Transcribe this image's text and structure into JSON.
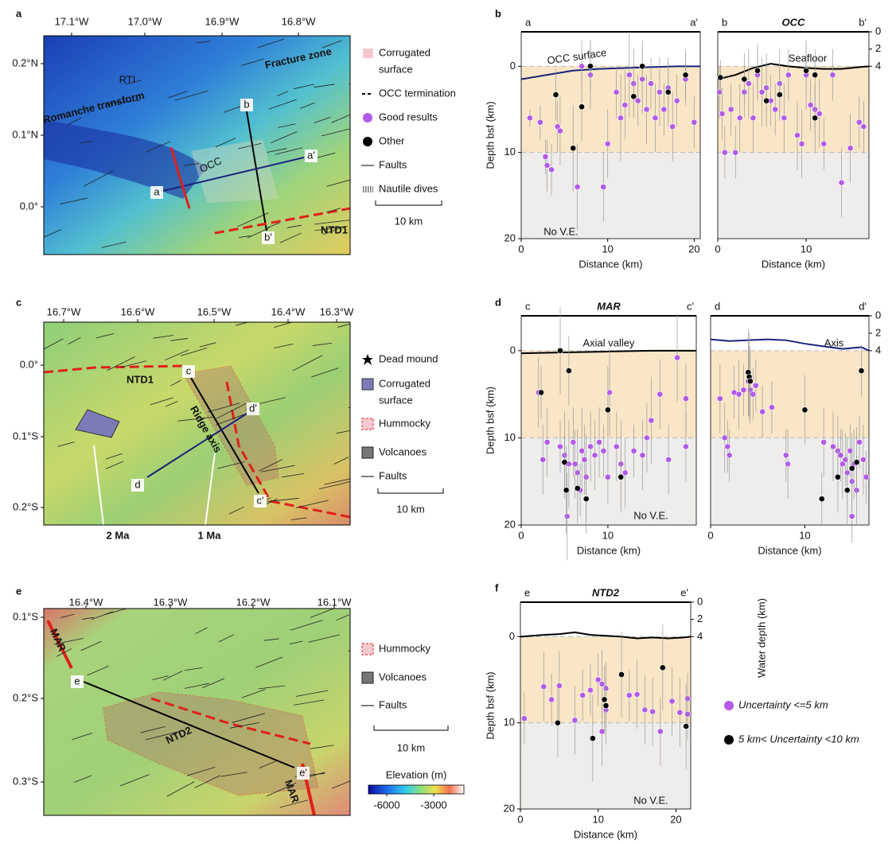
{
  "panel_labels": [
    "a",
    "b",
    "c",
    "d",
    "e",
    "f"
  ],
  "maps": [
    {
      "lon_labels": [
        "17.1°W",
        "17.0°W",
        "16.9°W",
        "16.8°W"
      ],
      "lat_labels": [
        "0.2°N",
        "0.1°N",
        "0.0°"
      ],
      "annotations": [
        "RTI",
        "Romanche transform",
        "Fracture zone",
        "OCC",
        "a",
        "a'",
        "b",
        "b'",
        "NTD1"
      ],
      "legend": [
        [
          "Corrugated",
          "surface"
        ],
        [
          "OCC termination"
        ],
        [
          "Good results"
        ],
        [
          "Other"
        ],
        [
          "Faults"
        ],
        [
          "Nautile dives"
        ]
      ],
      "scale_bar": "10 km"
    },
    {
      "lon_labels": [
        "16.7°W",
        "16.6°W",
        "16.5°W",
        "16.4°W",
        "16.3°W"
      ],
      "lat_labels": [
        "0.0°",
        "0.1°S",
        "0.2°S"
      ],
      "annotations": [
        "NTD1",
        "c",
        "Ridge axis",
        "d'",
        "d",
        "c'",
        "2 Ma",
        "1 Ma"
      ],
      "legend": [
        [
          "Dead mound"
        ],
        [
          "Corrugated",
          "surface"
        ],
        [
          "Hummocky"
        ],
        [
          "Volcanoes"
        ],
        [
          "Faults"
        ]
      ],
      "scale_bar": "10 km"
    },
    {
      "lon_labels": [
        "16.4°W",
        "16.3°W",
        "16.2°W",
        "16.1°W"
      ],
      "lat_labels": [
        "0.1°S",
        "0.2°S",
        "0.3°S"
      ],
      "annotations": [
        "MAR",
        "e",
        "NTD2",
        "e'",
        "MAR"
      ],
      "legend": [
        [
          "Hummocky"
        ],
        [
          "Volcanoes"
        ],
        [
          "Faults"
        ]
      ],
      "scale_bar": "10 km",
      "colorbar": {
        "title": "Elevation (m)",
        "lim": [
          -7170,
          -1070
        ],
        "ticks": [
          -6000,
          -3000
        ]
      }
    }
  ],
  "chart_data": [
    {
      "type": "scatter",
      "end_labels": [
        "a",
        "a'"
      ],
      "annotations": [
        "No V.E."
      ],
      "xlabel": "Distance (km)",
      "ylabel": "Depth bsf (km)",
      "xlim": [
        0,
        20.7
      ],
      "ylim": [
        20,
        -4
      ],
      "xticks": [
        0,
        10,
        20
      ],
      "yticks": [
        0,
        10,
        20
      ],
      "bands": [
        {
          "from": 0,
          "to": 10,
          "color": "#f9e6c6"
        },
        {
          "from": 10,
          "to": 20,
          "color": "#efedeb"
        }
      ],
      "series": [
        {
          "type": "line",
          "name": "OCC surface",
          "color": "#1a237e",
          "x": [
            0,
            3,
            6,
            9,
            12,
            15,
            18,
            20.7
          ],
          "values": [
            1.5,
            1,
            0.5,
            0.3,
            0.2,
            0.1,
            0,
            0
          ]
        },
        {
          "color": "#b35ae8",
          "x": [
            1,
            2.2,
            2.8,
            3,
            3.5,
            4.2,
            4.5,
            6.5,
            7,
            8,
            9.5,
            10,
            11,
            11.5,
            12,
            12.5,
            13,
            13.5,
            14,
            14.5,
            15,
            15.5,
            16,
            16.5,
            17,
            17.5,
            18,
            19,
            20
          ],
          "values": [
            6,
            6.5,
            10.5,
            11.5,
            12,
            7,
            7.5,
            14,
            0,
            1,
            14,
            9,
            3,
            6,
            4.5,
            1,
            2,
            4,
            1.5,
            5,
            2,
            6,
            3,
            5,
            2.5,
            7,
            4,
            1.5,
            6.5
          ],
          "errors": [
            1,
            2,
            2,
            3,
            3,
            3,
            4,
            5,
            3,
            4,
            4,
            4,
            3,
            5,
            4,
            5,
            4,
            3,
            4,
            4,
            3,
            4,
            4,
            3,
            3,
            4,
            3,
            3,
            3
          ]
        },
        {
          "color": "#000000",
          "x": [
            4,
            6,
            7,
            8,
            13,
            14,
            17,
            19
          ],
          "values": [
            3.3,
            9.5,
            4.7,
            0,
            3.5,
            0,
            3,
            1
          ],
          "errors": [
            3,
            5,
            4,
            3,
            2,
            3,
            4,
            3
          ]
        }
      ]
    },
    {
      "type": "scatter",
      "title": "OCC",
      "end_labels": [
        "b",
        "b'"
      ],
      "xlabel": "Distance (km)",
      "xlim": [
        0,
        17.1
      ],
      "ylim": [
        20,
        -4
      ],
      "xticks": [
        0,
        10
      ],
      "y2lim": [
        24,
        0
      ],
      "y2ticks": [
        0,
        2,
        4
      ],
      "bands": [
        {
          "from": 0,
          "to": 10,
          "color": "#f9e6c6"
        },
        {
          "from": 10,
          "to": 20,
          "color": "#efedeb"
        }
      ],
      "series": [
        {
          "type": "line",
          "name": "Seafloor",
          "color": "#000000",
          "x": [
            0,
            2,
            4,
            6,
            8,
            10,
            12,
            14,
            16,
            17.1
          ],
          "values": [
            1.5,
            1,
            0.2,
            -0.3,
            0,
            0.2,
            0.3,
            0.3,
            0.1,
            0
          ]
        },
        {
          "color": "#b35ae8",
          "x": [
            0.2,
            0.5,
            0.8,
            1.5,
            2,
            2.5,
            3,
            3.5,
            4,
            4.5,
            5,
            5.5,
            6,
            6.5,
            7,
            7.5,
            8,
            9,
            9.5,
            10,
            10.5,
            11,
            11.5,
            12,
            13,
            14,
            15,
            16,
            16.5
          ],
          "values": [
            3,
            5.5,
            10,
            5,
            10,
            6,
            3,
            2,
            6,
            1,
            3,
            2.5,
            4,
            5,
            2,
            6,
            1,
            8,
            9,
            1,
            4.5,
            5,
            5.5,
            9,
            1,
            13.5,
            9.5,
            6.5,
            7
          ],
          "errors": [
            3,
            3,
            3,
            3,
            3,
            4,
            3,
            4,
            4,
            3,
            4,
            4,
            3,
            3,
            4,
            4,
            3,
            4,
            4,
            4,
            3,
            3,
            4,
            3,
            3,
            4,
            4,
            3,
            3
          ]
        },
        {
          "color": "#000000",
          "x": [
            0.3,
            3,
            4.5,
            5.5,
            7,
            10,
            11,
            11
          ],
          "values": [
            1.3,
            1.5,
            0.5,
            4,
            3.3,
            0.5,
            1,
            6
          ],
          "errors": [
            2,
            3,
            3,
            3,
            3,
            3,
            3,
            4
          ]
        }
      ]
    },
    {
      "type": "scatter",
      "title": "MAR",
      "end_labels": [
        "c",
        "c'"
      ],
      "annotations": [
        "No V.E."
      ],
      "xlabel": "Distance (km)",
      "ylabel": "Depth bsf (km)",
      "xlim": [
        0,
        20.2
      ],
      "ylim": [
        20,
        -4
      ],
      "xticks": [
        0,
        10
      ],
      "yticks": [
        0,
        10,
        20
      ],
      "bands": [
        {
          "from": 0,
          "to": 10,
          "color": "#f9e6c6"
        },
        {
          "from": 10,
          "to": 20,
          "color": "#efedeb"
        }
      ],
      "series": [
        {
          "type": "line",
          "name": "Axial valley",
          "color": "#000000",
          "x": [
            0,
            5,
            10,
            15,
            20.2
          ],
          "values": [
            0.3,
            0.2,
            0.1,
            0,
            0
          ]
        },
        {
          "color": "#b35ae8",
          "x": [
            2,
            2.5,
            3,
            4.5,
            5,
            5.5,
            6,
            6.2,
            6.5,
            6.8,
            7,
            7.3,
            7.5,
            8,
            8.5,
            9,
            9.5,
            10,
            10.2,
            11,
            11.5,
            12,
            13,
            14,
            14.5,
            15,
            16,
            17,
            18,
            19,
            19,
            5.3
          ],
          "values": [
            4.8,
            12.5,
            10.5,
            11,
            12,
            13,
            10.5,
            13,
            14,
            16,
            11.5,
            12.5,
            14.5,
            11,
            12,
            10.5,
            11.5,
            14.5,
            4.8,
            11,
            13,
            14,
            11.5,
            12,
            10,
            8,
            5,
            12.5,
            0.8,
            5.5,
            11,
            19
          ],
          "errors": [
            4,
            4,
            4,
            3,
            5,
            5,
            4,
            4,
            5,
            3,
            5,
            4,
            5,
            4,
            4,
            4,
            3,
            3,
            5,
            4,
            5,
            4,
            3,
            4,
            4,
            5,
            4,
            4,
            5,
            4,
            4,
            5
          ]
        },
        {
          "color": "#000000",
          "x": [
            2.3,
            4.5,
            5,
            5.2,
            5.5,
            6.5,
            7.5,
            10,
            11.5
          ],
          "values": [
            4.8,
            0,
            12.8,
            16,
            2.3,
            15.8,
            17,
            6.8,
            14.5
          ],
          "errors": [
            3,
            5,
            3,
            5,
            4,
            4,
            4,
            5,
            4
          ]
        }
      ]
    },
    {
      "type": "scatter",
      "end_labels": [
        "d",
        "d'"
      ],
      "xlabel": "Distance (km)",
      "xlim": [
        0,
        16.8
      ],
      "ylim": [
        20,
        -4
      ],
      "xticks": [
        0,
        10
      ],
      "y2lim": [
        24,
        0
      ],
      "y2ticks": [
        0,
        2,
        4
      ],
      "bands": [
        {
          "from": 0,
          "to": 10,
          "color": "#f9e6c6"
        },
        {
          "from": 10,
          "to": 20,
          "color": "#efedeb"
        }
      ],
      "series": [
        {
          "type": "line",
          "name": "Axis",
          "color": "#1a237e",
          "x": [
            0,
            2,
            4,
            6,
            8,
            10,
            12,
            14,
            16,
            16.8
          ],
          "values": [
            -1.3,
            -1.1,
            -1.2,
            -1.3,
            -1.2,
            -0.8,
            -0.5,
            -0.2,
            -0.4,
            0
          ]
        },
        {
          "color": "#b35ae8",
          "x": [
            1,
            1.5,
            1.8,
            2,
            2.5,
            3,
            3.5,
            4,
            4.2,
            4.5,
            4.8,
            5.5,
            6.5,
            8,
            8.2,
            12,
            13,
            13.5,
            13.8,
            14,
            14.3,
            14.5,
            14.8,
            15,
            15.2,
            15.5,
            16.2,
            16.5,
            15,
            15.8
          ],
          "values": [
            5.5,
            10,
            11,
            12,
            4.8,
            5,
            4.5,
            3.5,
            4.5,
            5,
            4,
            7,
            6.5,
            12,
            13,
            10.5,
            11,
            11.5,
            12,
            13,
            12.5,
            14,
            11.5,
            15,
            13,
            16,
            12.5,
            14.5,
            19,
            10.5
          ],
          "errors": [
            4,
            4,
            3,
            3,
            3,
            4,
            3,
            4,
            4,
            3,
            3,
            3,
            3,
            3,
            4,
            4,
            4,
            4,
            3,
            4,
            3,
            4,
            3,
            4,
            4,
            4,
            4,
            3,
            3,
            3
          ]
        },
        {
          "color": "#000000",
          "x": [
            4,
            4.1,
            4.2,
            10,
            11.8,
            13.5,
            14.5,
            15,
            15.5,
            16
          ],
          "values": [
            2.5,
            3,
            3.5,
            6.8,
            17,
            14.5,
            16,
            13.5,
            12.8,
            2.3
          ],
          "errors": [
            5,
            5,
            4,
            4,
            3,
            4,
            4,
            4,
            4,
            3
          ]
        }
      ]
    },
    {
      "type": "scatter",
      "title": "NTD2",
      "end_labels": [
        "e",
        "e'"
      ],
      "annotations": [
        "No V.E."
      ],
      "xlabel": "Distance (km)",
      "ylabel": "Depth bsf (km)",
      "y2label": "Water depth (km)",
      "xlim": [
        0,
        21.9
      ],
      "ylim": [
        20,
        -4
      ],
      "xticks": [
        0,
        10,
        20
      ],
      "yticks": [
        0,
        10,
        20
      ],
      "y2lim": [
        24,
        0
      ],
      "y2ticks": [
        0,
        2,
        4
      ],
      "bands": [
        {
          "from": 0,
          "to": 10,
          "color": "#f9e6c6"
        },
        {
          "from": 10,
          "to": 20,
          "color": "#efedeb"
        }
      ],
      "series": [
        {
          "type": "line",
          "color": "#000000",
          "x": [
            0,
            3,
            5,
            7,
            9,
            11,
            13,
            15,
            17,
            19,
            21,
            21.9
          ],
          "values": [
            0,
            -0.2,
            -0.3,
            -0.5,
            -0.2,
            -0.1,
            0,
            0.2,
            0.1,
            0.2,
            0.1,
            0
          ]
        },
        {
          "name": "Uncertainty <=5 km",
          "color": "#b35ae8",
          "x": [
            0.5,
            3,
            4,
            5,
            7,
            8,
            9,
            10,
            10.5,
            10.5,
            11,
            11,
            14,
            15,
            16,
            17,
            18,
            19.5,
            20.5,
            21.5,
            21.5
          ],
          "values": [
            9.5,
            5.8,
            7.3,
            5.7,
            9.7,
            6.8,
            6.2,
            5,
            5.5,
            11,
            6,
            8.5,
            6.8,
            6.7,
            8.5,
            8.7,
            11,
            7.5,
            8.8,
            7.2,
            9
          ],
          "errors": [
            3,
            4,
            3,
            4,
            4,
            3,
            3,
            3,
            4,
            4,
            3,
            4,
            3,
            4,
            4,
            4,
            4,
            4,
            4,
            3,
            3
          ]
        },
        {
          "name": "5 km< Uncertainty <10 km",
          "color": "#000000",
          "x": [
            4.8,
            9.3,
            10.8,
            11,
            13,
            18.3,
            21.3
          ],
          "values": [
            10,
            11.8,
            7.3,
            8,
            4.4,
            3.6,
            10.4
          ],
          "errors": [
            4,
            5,
            4,
            3,
            5,
            5,
            5
          ]
        }
      ]
    }
  ]
}
